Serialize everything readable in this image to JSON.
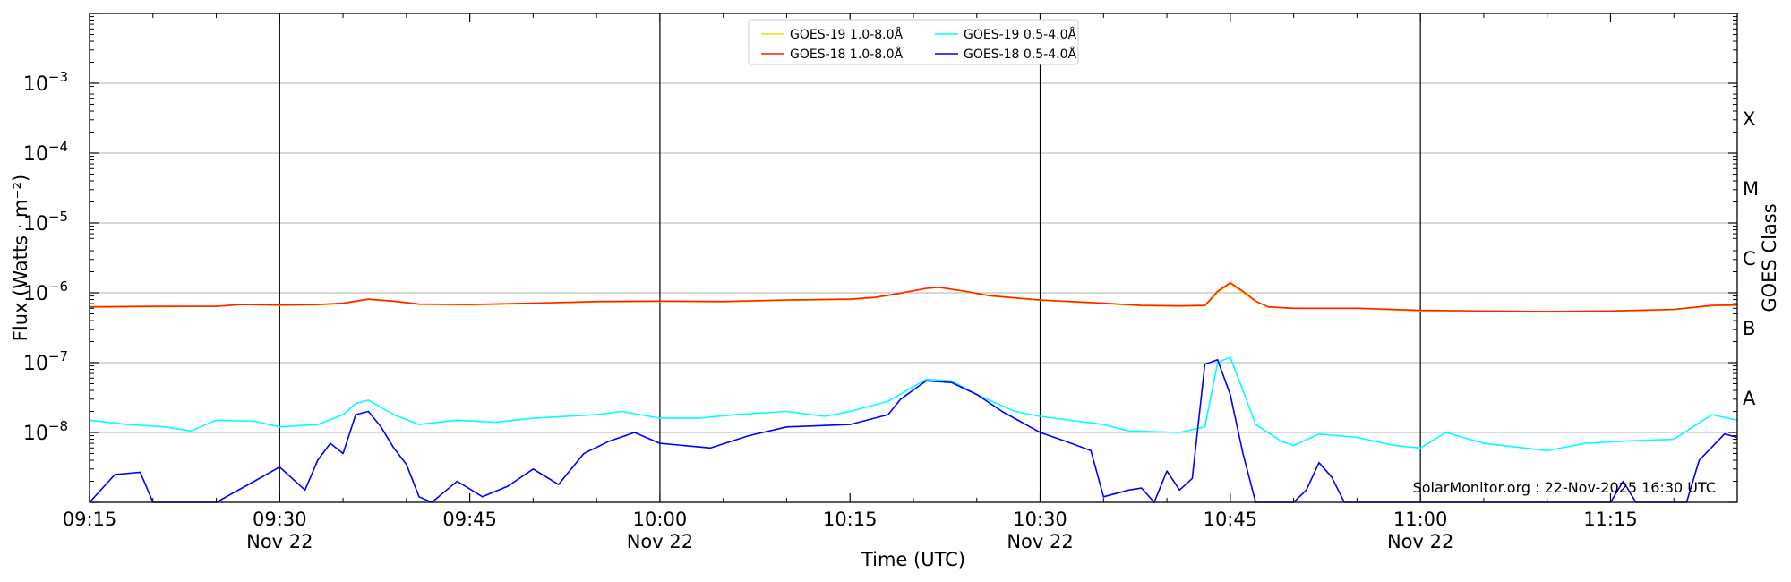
{
  "chart_data": {
    "type": "line",
    "title": "",
    "xlabel": "Time (UTC)",
    "ylabel": "Flux (Watts · m⁻²)",
    "y2label": "GOES Class",
    "yscale": "log",
    "ylim": [
      1e-09,
      0.01
    ],
    "xlim": [
      "09:15",
      "11:25"
    ],
    "grid": "horizontal at decades 1e-8 to 1e-3",
    "legend_position": "top-center",
    "x_ticks": [
      {
        "time": "09:15",
        "label": "09:15",
        "sub": ""
      },
      {
        "time": "09:30",
        "label": "09:30",
        "sub": "Nov 22"
      },
      {
        "time": "09:45",
        "label": "09:45",
        "sub": ""
      },
      {
        "time": "10:00",
        "label": "10:00",
        "sub": "Nov 22"
      },
      {
        "time": "10:15",
        "label": "10:15",
        "sub": ""
      },
      {
        "time": "10:30",
        "label": "10:30",
        "sub": "Nov 22"
      },
      {
        "time": "10:45",
        "label": "10:45",
        "sub": ""
      },
      {
        "time": "11:00",
        "label": "11:00",
        "sub": "Nov 22"
      },
      {
        "time": "11:15",
        "label": "11:15",
        "sub": ""
      }
    ],
    "vertical_lines": [
      "09:30",
      "10:00",
      "10:30",
      "11:00"
    ],
    "y_ticks": [
      {
        "value": 1e-08,
        "base": "10",
        "exp": "−8"
      },
      {
        "value": 1e-07,
        "base": "10",
        "exp": "−7"
      },
      {
        "value": 1e-06,
        "base": "10",
        "exp": "−6"
      },
      {
        "value": 1e-05,
        "base": "10",
        "exp": "−5"
      },
      {
        "value": 0.0001,
        "base": "10",
        "exp": "−4"
      },
      {
        "value": 0.001,
        "base": "10",
        "exp": "−3"
      }
    ],
    "goes_classes": [
      {
        "label": "A",
        "value": 1e-08
      },
      {
        "label": "B",
        "value": 1e-07
      },
      {
        "label": "C",
        "value": 1e-06
      },
      {
        "label": "M",
        "value": 1e-05
      },
      {
        "label": "X",
        "value": 0.0001
      }
    ],
    "annotation": "SolarMonitor.org : 22-Nov-2025 16:30 UTC",
    "series": [
      {
        "name": "GOES-19 1.0-8.0Å",
        "color": "#ffd700",
        "points": [
          [
            "09:15",
            6.2e-07
          ],
          [
            "09:20",
            6.3e-07
          ],
          [
            "09:25",
            6.4e-07
          ],
          [
            "09:27",
            6.8e-07
          ],
          [
            "09:30",
            6.6e-07
          ],
          [
            "09:33",
            6.7e-07
          ],
          [
            "09:35",
            7e-07
          ],
          [
            "09:37",
            8e-07
          ],
          [
            "09:39",
            7.5e-07
          ],
          [
            "09:41",
            6.8e-07
          ],
          [
            "09:45",
            6.7e-07
          ],
          [
            "09:50",
            7e-07
          ],
          [
            "09:55",
            7.4e-07
          ],
          [
            "10:00",
            7.5e-07
          ],
          [
            "10:05",
            7.4e-07
          ],
          [
            "10:10",
            7.8e-07
          ],
          [
            "10:15",
            8e-07
          ],
          [
            "10:17",
            8.5e-07
          ],
          [
            "10:19",
            9.8e-07
          ],
          [
            "10:21",
            1.15e-06
          ],
          [
            "10:22",
            1.2e-06
          ],
          [
            "10:24",
            1.05e-06
          ],
          [
            "10:26",
            9e-07
          ],
          [
            "10:30",
            7.8e-07
          ],
          [
            "10:35",
            7e-07
          ],
          [
            "10:38",
            6.5e-07
          ],
          [
            "10:41",
            6.4e-07
          ],
          [
            "10:43",
            6.5e-07
          ],
          [
            "10:44",
            1e-06
          ],
          [
            "10:45",
            1.35e-06
          ],
          [
            "10:46",
            1e-06
          ],
          [
            "10:47",
            7.5e-07
          ],
          [
            "10:48",
            6.2e-07
          ],
          [
            "10:50",
            6e-07
          ],
          [
            "10:55",
            6e-07
          ],
          [
            "11:00",
            5.5e-07
          ],
          [
            "11:05",
            5.4e-07
          ],
          [
            "11:10",
            5.3e-07
          ],
          [
            "11:15",
            5.4e-07
          ],
          [
            "11:20",
            5.7e-07
          ],
          [
            "11:23",
            6.5e-07
          ],
          [
            "11:25",
            6.6e-07
          ]
        ]
      },
      {
        "name": "GOES-18 1.0-8.0Å",
        "color": "#ff2000",
        "points": [
          [
            "09:15",
            6.3e-07
          ],
          [
            "09:20",
            6.4e-07
          ],
          [
            "09:25",
            6.4e-07
          ],
          [
            "09:27",
            6.8e-07
          ],
          [
            "09:30",
            6.7e-07
          ],
          [
            "09:33",
            6.8e-07
          ],
          [
            "09:35",
            7.1e-07
          ],
          [
            "09:37",
            8.1e-07
          ],
          [
            "09:39",
            7.6e-07
          ],
          [
            "09:41",
            6.9e-07
          ],
          [
            "09:45",
            6.8e-07
          ],
          [
            "09:50",
            7.1e-07
          ],
          [
            "09:55",
            7.5e-07
          ],
          [
            "10:00",
            7.6e-07
          ],
          [
            "10:05",
            7.5e-07
          ],
          [
            "10:10",
            7.9e-07
          ],
          [
            "10:15",
            8.1e-07
          ],
          [
            "10:17",
            8.6e-07
          ],
          [
            "10:19",
            9.9e-07
          ],
          [
            "10:21",
            1.16e-06
          ],
          [
            "10:22",
            1.2e-06
          ],
          [
            "10:24",
            1.06e-06
          ],
          [
            "10:26",
            9.1e-07
          ],
          [
            "10:30",
            7.9e-07
          ],
          [
            "10:35",
            7.1e-07
          ],
          [
            "10:38",
            6.6e-07
          ],
          [
            "10:41",
            6.5e-07
          ],
          [
            "10:43",
            6.6e-07
          ],
          [
            "10:44",
            1.05e-06
          ],
          [
            "10:45",
            1.4e-06
          ],
          [
            "10:46",
            1.05e-06
          ],
          [
            "10:47",
            7.6e-07
          ],
          [
            "10:48",
            6.3e-07
          ],
          [
            "10:50",
            6e-07
          ],
          [
            "10:55",
            6e-07
          ],
          [
            "11:00",
            5.6e-07
          ],
          [
            "11:05",
            5.5e-07
          ],
          [
            "11:10",
            5.4e-07
          ],
          [
            "11:15",
            5.5e-07
          ],
          [
            "11:20",
            5.8e-07
          ],
          [
            "11:23",
            6.6e-07
          ],
          [
            "11:25",
            6.7e-07
          ]
        ]
      },
      {
        "name": "GOES-19 0.5-4.0Å",
        "color": "#00ffff",
        "points": [
          [
            "09:15",
            1.5e-08
          ],
          [
            "09:18",
            1.3e-08
          ],
          [
            "09:21",
            1.2e-08
          ],
          [
            "09:23",
            1.05e-08
          ],
          [
            "09:25",
            1.5e-08
          ],
          [
            "09:28",
            1.45e-08
          ],
          [
            "09:30",
            1.2e-08
          ],
          [
            "09:33",
            1.3e-08
          ],
          [
            "09:35",
            1.8e-08
          ],
          [
            "09:36",
            2.6e-08
          ],
          [
            "09:37",
            2.9e-08
          ],
          [
            "09:39",
            1.8e-08
          ],
          [
            "09:41",
            1.3e-08
          ],
          [
            "09:44",
            1.5e-08
          ],
          [
            "09:47",
            1.4e-08
          ],
          [
            "09:50",
            1.6e-08
          ],
          [
            "09:55",
            1.8e-08
          ],
          [
            "09:57",
            2e-08
          ],
          [
            "10:00",
            1.6e-08
          ],
          [
            "10:03",
            1.6e-08
          ],
          [
            "10:06",
            1.8e-08
          ],
          [
            "10:10",
            2e-08
          ],
          [
            "10:13",
            1.7e-08
          ],
          [
            "10:15",
            2e-08
          ],
          [
            "10:18",
            2.8e-08
          ],
          [
            "10:20",
            4.5e-08
          ],
          [
            "10:21",
            5.8e-08
          ],
          [
            "10:23",
            5.5e-08
          ],
          [
            "10:25",
            3.5e-08
          ],
          [
            "10:28",
            2e-08
          ],
          [
            "10:30",
            1.7e-08
          ],
          [
            "10:35",
            1.3e-08
          ],
          [
            "10:37",
            1.05e-08
          ],
          [
            "10:41",
            1e-08
          ],
          [
            "10:43",
            1.2e-08
          ],
          [
            "10:44",
            1e-07
          ],
          [
            "10:45",
            1.2e-07
          ],
          [
            "10:46",
            4e-08
          ],
          [
            "10:47",
            1.3e-08
          ],
          [
            "10:49",
            7.5e-09
          ],
          [
            "10:50",
            6.5e-09
          ],
          [
            "10:52",
            9.5e-09
          ],
          [
            "10:55",
            8.5e-09
          ],
          [
            "10:58",
            6.5e-09
          ],
          [
            "11:00",
            6e-09
          ],
          [
            "11:02",
            1e-08
          ],
          [
            "11:05",
            7e-09
          ],
          [
            "11:10",
            5.5e-09
          ],
          [
            "11:13",
            7e-09
          ],
          [
            "11:16",
            7.5e-09
          ],
          [
            "11:20",
            8e-09
          ],
          [
            "11:23",
            1.8e-08
          ],
          [
            "11:25",
            1.5e-08
          ]
        ]
      },
      {
        "name": "GOES-18 0.5-4.0Å",
        "color": "#0000ff",
        "points": [
          [
            "09:15",
            1e-09
          ],
          [
            "09:17",
            2.5e-09
          ],
          [
            "09:19",
            2.7e-09
          ],
          [
            "09:20",
            1e-09
          ],
          [
            "09:25",
            1e-09
          ],
          [
            "09:28",
            2e-09
          ],
          [
            "09:30",
            3.2e-09
          ],
          [
            "09:32",
            1.5e-09
          ],
          [
            "09:33",
            4e-09
          ],
          [
            "09:34",
            7e-09
          ],
          [
            "09:35",
            5e-09
          ],
          [
            "09:36",
            1.8e-08
          ],
          [
            "09:37",
            2e-08
          ],
          [
            "09:38",
            1.2e-08
          ],
          [
            "09:39",
            6e-09
          ],
          [
            "09:40",
            3.5e-09
          ],
          [
            "09:41",
            1.2e-09
          ],
          [
            "09:42",
            1e-09
          ],
          [
            "09:44",
            2e-09
          ],
          [
            "09:46",
            1.2e-09
          ],
          [
            "09:48",
            1.7e-09
          ],
          [
            "09:50",
            3e-09
          ],
          [
            "09:52",
            1.8e-09
          ],
          [
            "09:54",
            5e-09
          ],
          [
            "09:56",
            7.5e-09
          ],
          [
            "09:58",
            1e-08
          ],
          [
            "10:00",
            7e-09
          ],
          [
            "10:04",
            6e-09
          ],
          [
            "10:07",
            9e-09
          ],
          [
            "10:10",
            1.2e-08
          ],
          [
            "10:15",
            1.3e-08
          ],
          [
            "10:18",
            1.8e-08
          ],
          [
            "10:19",
            3e-08
          ],
          [
            "10:21",
            5.5e-08
          ],
          [
            "10:23",
            5.2e-08
          ],
          [
            "10:25",
            3.5e-08
          ],
          [
            "10:27",
            2e-08
          ],
          [
            "10:30",
            1e-08
          ],
          [
            "10:32",
            7.5e-09
          ],
          [
            "10:34",
            5.5e-09
          ],
          [
            "10:35",
            1.2e-09
          ],
          [
            "10:37",
            1.5e-09
          ],
          [
            "10:38",
            1.6e-09
          ],
          [
            "10:39",
            1e-09
          ],
          [
            "10:40",
            2.8e-09
          ],
          [
            "10:41",
            1.5e-09
          ],
          [
            "10:42",
            2.2e-09
          ],
          [
            "10:43",
            9.5e-08
          ],
          [
            "10:44",
            1.1e-07
          ],
          [
            "10:45",
            3.5e-08
          ],
          [
            "10:46",
            5e-09
          ],
          [
            "10:47",
            1e-09
          ],
          [
            "10:50",
            1e-09
          ],
          [
            "10:51",
            1.5e-09
          ],
          [
            "10:52",
            3.7e-09
          ],
          [
            "10:53",
            2.3e-09
          ],
          [
            "10:54",
            1e-09
          ],
          [
            "11:15",
            1e-09
          ],
          [
            "11:16",
            2e-09
          ],
          [
            "11:17",
            1e-09
          ],
          [
            "11:21",
            1e-09
          ],
          [
            "11:22",
            4e-09
          ],
          [
            "11:24",
            9.5e-09
          ],
          [
            "11:25",
            8.5e-09
          ]
        ]
      }
    ]
  }
}
